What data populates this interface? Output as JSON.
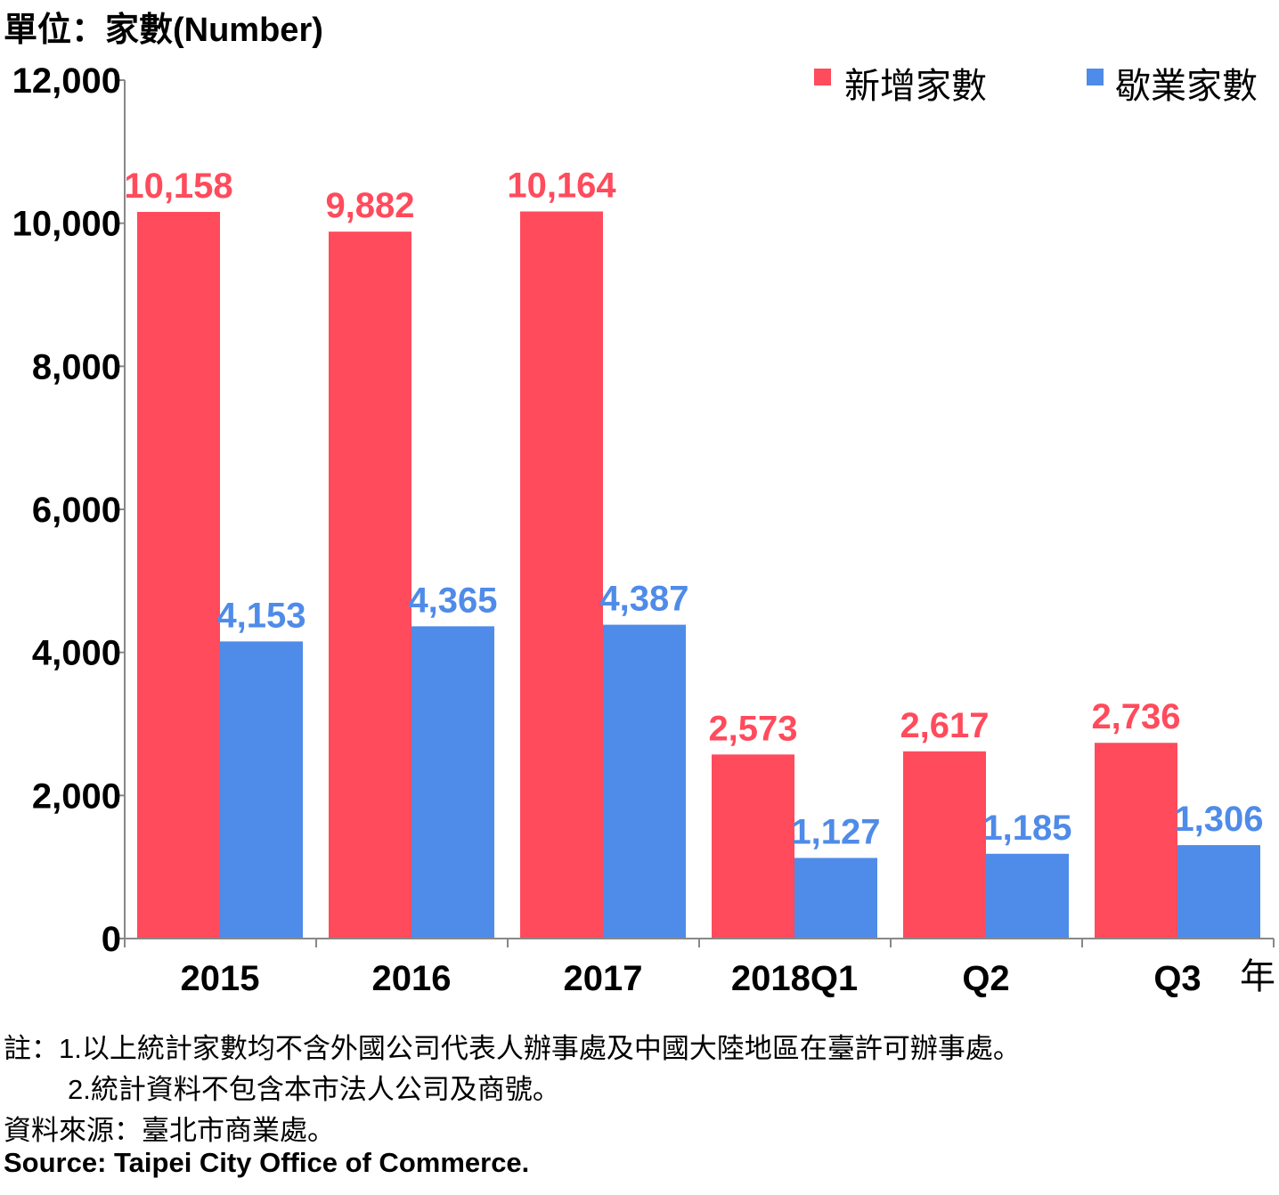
{
  "chart_data": {
    "type": "bar",
    "unit_label": "單位：家數(Number)",
    "categories": [
      "2015",
      "2016",
      "2017",
      "2018Q1",
      "Q2",
      "Q3"
    ],
    "xlabel": "年",
    "ylabel": "",
    "ylim": [
      0,
      12000
    ],
    "yticks": [
      0,
      2000,
      4000,
      6000,
      8000,
      10000,
      12000
    ],
    "ytick_labels": [
      "0",
      "2,000",
      "4,000",
      "6,000",
      "8,000",
      "10,000",
      "12,000"
    ],
    "grid": false,
    "legend_position": "top-right",
    "series": [
      {
        "name": "新增家數",
        "color": "#FF4B5C",
        "values": [
          10158,
          9882,
          10164,
          2573,
          2617,
          2736
        ],
        "labels": [
          "10,158",
          "9,882",
          "10,164",
          "2,573",
          "2,617",
          "2,736"
        ]
      },
      {
        "name": "歇業家數",
        "color": "#4F8BE8",
        "values": [
          4153,
          4365,
          4387,
          1127,
          1185,
          1306
        ],
        "labels": [
          "4,153",
          "4,365",
          "4,387",
          "1,127",
          "1,185",
          "1,306"
        ]
      }
    ]
  },
  "notes": {
    "note1": "註：1.以上統計家數均不含外國公司代表人辦事處及中國大陸地區在臺許可辦事處。",
    "note2": "2.統計資料不包含本市法人公司及商號。",
    "source_zh": "資料來源：臺北市商業處。",
    "source_en": "Source: Taipei City Office of Commerce."
  }
}
